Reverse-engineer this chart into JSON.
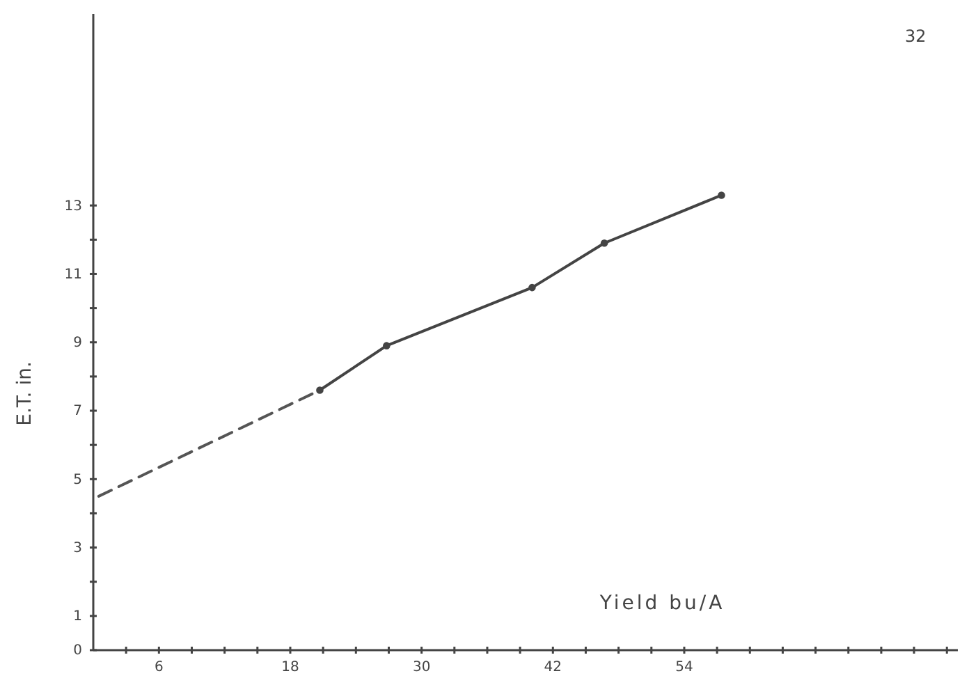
{
  "chart_data": {
    "type": "line",
    "xlabel": "Yield bu/A",
    "ylabel": "E.T. in.",
    "annotations": [
      "32"
    ],
    "xlim": [
      0,
      79
    ],
    "ylim": [
      0,
      18.6
    ],
    "xticks": [
      {
        "value": 3,
        "label": null
      },
      6,
      {
        "value": 9,
        "label": null
      },
      {
        "value": 12,
        "label": null
      },
      {
        "value": 15,
        "label": null
      },
      18,
      {
        "value": 21,
        "label": null
      },
      {
        "value": 24,
        "label": null
      },
      {
        "value": 27,
        "label": null
      },
      30,
      {
        "value": 33,
        "label": null
      },
      {
        "value": 36,
        "label": null
      },
      {
        "value": 39,
        "label": null
      },
      42,
      {
        "value": 45,
        "label": null
      },
      {
        "value": 48,
        "label": null
      },
      {
        "value": 51,
        "label": null
      },
      54,
      {
        "value": 57,
        "label": null
      },
      {
        "value": 60,
        "label": null
      },
      {
        "value": 63,
        "label": null
      },
      {
        "value": 66,
        "label": null
      },
      {
        "value": 69,
        "label": null
      },
      {
        "value": 72,
        "label": null
      },
      {
        "value": 75,
        "label": null
      },
      {
        "value": 78,
        "label": null
      }
    ],
    "yticks": [
      0,
      1,
      {
        "value": 2,
        "label": null
      },
      3,
      {
        "value": 4,
        "label": null
      },
      5,
      {
        "value": 6,
        "label": null
      },
      7,
      {
        "value": 8,
        "label": null
      },
      9,
      {
        "value": 10,
        "label": null
      },
      11,
      {
        "value": 12,
        "label": null
      },
      13
    ],
    "grid": false,
    "series": [
      {
        "color": "#555555",
        "line_style": "dashed",
        "marker": "none",
        "x": [
          0.5,
          20.7
        ],
        "values": [
          4.5,
          7.6
        ]
      },
      {
        "color": "#444444",
        "line_style": "solid",
        "marker": "circle",
        "x": [
          20.7,
          26.8,
          40.1,
          46.7,
          57.4
        ],
        "values": [
          7.6,
          8.9,
          10.6,
          11.9,
          13.3
        ]
      }
    ]
  }
}
